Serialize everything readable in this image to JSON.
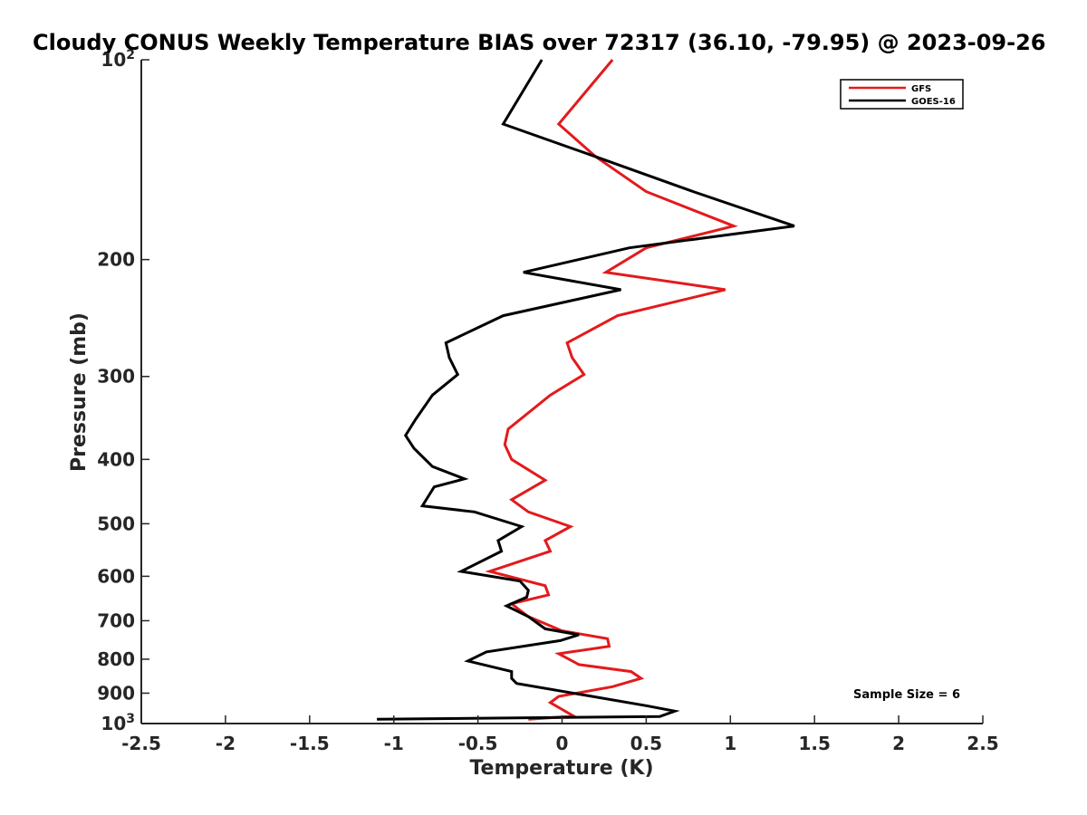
{
  "chart_data": {
    "type": "line",
    "title": "Cloudy CONUS Weekly Temperature BIAS over 72317 (36.10, -79.95) @ 2023-09-26",
    "xlabel": "Temperature (K)",
    "ylabel": "Pressure (mb)",
    "xlim": [
      -2.5,
      2.5
    ],
    "ylim": [
      100,
      1000
    ],
    "y_scale": "log",
    "y_reversed": true,
    "grid": false,
    "legend_position": "top-right",
    "x_ticks": [
      "-2.5",
      "-2",
      "-1.5",
      "-1",
      "-0.5",
      "0",
      "0.5",
      "1",
      "1.5",
      "2",
      "2.5"
    ],
    "y_ticks": [
      {
        "value": 100,
        "label": "10",
        "sup": "2"
      },
      {
        "value": 200,
        "label": "200",
        "sup": ""
      },
      {
        "value": 300,
        "label": "300",
        "sup": ""
      },
      {
        "value": 400,
        "label": "400",
        "sup": ""
      },
      {
        "value": 500,
        "label": "500",
        "sup": ""
      },
      {
        "value": 600,
        "label": "600",
        "sup": ""
      },
      {
        "value": 700,
        "label": "700",
        "sup": ""
      },
      {
        "value": 800,
        "label": "800",
        "sup": ""
      },
      {
        "value": 900,
        "label": "900",
        "sup": ""
      },
      {
        "value": 1000,
        "label": "10",
        "sup": "3"
      }
    ],
    "annotation": "Sample Size = 6",
    "series": [
      {
        "name": "GFS",
        "color": "#e31a1c",
        "points": [
          [
            0.3,
            100
          ],
          [
            -0.02,
            125
          ],
          [
            0.2,
            140
          ],
          [
            0.5,
            158
          ],
          [
            1.02,
            178
          ],
          [
            0.5,
            192
          ],
          [
            0.26,
            209
          ],
          [
            0.97,
            222
          ],
          [
            0.33,
            243
          ],
          [
            0.03,
            267
          ],
          [
            0.06,
            281
          ],
          [
            0.13,
            298
          ],
          [
            -0.07,
            320
          ],
          [
            -0.32,
            360
          ],
          [
            -0.34,
            380
          ],
          [
            -0.3,
            400
          ],
          [
            -0.1,
            430
          ],
          [
            -0.3,
            460
          ],
          [
            -0.2,
            480
          ],
          [
            0.05,
            505
          ],
          [
            -0.1,
            530
          ],
          [
            -0.07,
            550
          ],
          [
            -0.43,
            590
          ],
          [
            -0.1,
            620
          ],
          [
            -0.08,
            640
          ],
          [
            -0.3,
            660
          ],
          [
            -0.26,
            672
          ],
          [
            -0.2,
            690
          ],
          [
            0.0,
            725
          ],
          [
            0.27,
            745
          ],
          [
            0.28,
            765
          ],
          [
            -0.02,
            785
          ],
          [
            0.1,
            815
          ],
          [
            0.41,
            835
          ],
          [
            0.47,
            855
          ],
          [
            0.3,
            880
          ],
          [
            -0.02,
            910
          ],
          [
            -0.07,
            930
          ],
          [
            0.07,
            975
          ],
          [
            -0.2,
            985
          ]
        ]
      },
      {
        "name": "GOES-16",
        "color": "#000000",
        "points": [
          [
            -0.12,
            100
          ],
          [
            -0.35,
            125
          ],
          [
            0.2,
            140
          ],
          [
            0.78,
            158
          ],
          [
            1.38,
            178
          ],
          [
            0.4,
            192
          ],
          [
            -0.23,
            209
          ],
          [
            0.35,
            222
          ],
          [
            -0.35,
            243
          ],
          [
            -0.69,
            267
          ],
          [
            -0.67,
            281
          ],
          [
            -0.62,
            298
          ],
          [
            -0.77,
            320
          ],
          [
            -0.87,
            348
          ],
          [
            -0.93,
            368
          ],
          [
            -0.88,
            385
          ],
          [
            -0.77,
            410
          ],
          [
            -0.58,
            428
          ],
          [
            -0.76,
            440
          ],
          [
            -0.83,
            470
          ],
          [
            -0.52,
            480
          ],
          [
            -0.24,
            505
          ],
          [
            -0.38,
            530
          ],
          [
            -0.36,
            550
          ],
          [
            -0.6,
            590
          ],
          [
            -0.25,
            610
          ],
          [
            -0.2,
            630
          ],
          [
            -0.21,
            645
          ],
          [
            -0.33,
            665
          ],
          [
            -0.2,
            690
          ],
          [
            -0.1,
            720
          ],
          [
            0.1,
            735
          ],
          [
            -0.01,
            750
          ],
          [
            -0.45,
            780
          ],
          [
            -0.56,
            805
          ],
          [
            -0.3,
            835
          ],
          [
            -0.3,
            855
          ],
          [
            -0.27,
            870
          ],
          [
            0.5,
            940
          ],
          [
            0.67,
            958
          ],
          [
            0.58,
            976
          ],
          [
            -1.1,
            985
          ]
        ]
      }
    ]
  }
}
